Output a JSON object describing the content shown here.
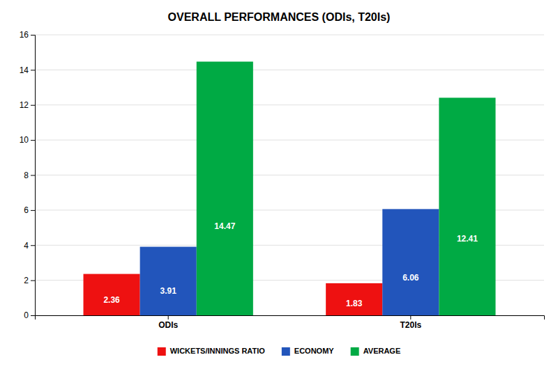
{
  "chart_data": {
    "type": "bar",
    "title": "OVERALL PERFORMANCES (ODIs, T20Is)",
    "categories": [
      "ODIs",
      "T20Is"
    ],
    "series": [
      {
        "name": "WICKETS/INNINGS RATIO",
        "color": "#ee1111",
        "values": [
          2.36,
          1.83
        ]
      },
      {
        "name": "ECONOMY",
        "color": "#2255bb",
        "values": [
          3.91,
          6.06
        ]
      },
      {
        "name": "AVERAGE",
        "color": "#00aa44",
        "values": [
          14.47,
          12.41
        ]
      }
    ],
    "ylim": [
      0,
      16
    ],
    "yticks": [
      0,
      2,
      4,
      6,
      8,
      10,
      12,
      14,
      16
    ],
    "grid": true,
    "legend": "bottom",
    "data_labels": true
  }
}
